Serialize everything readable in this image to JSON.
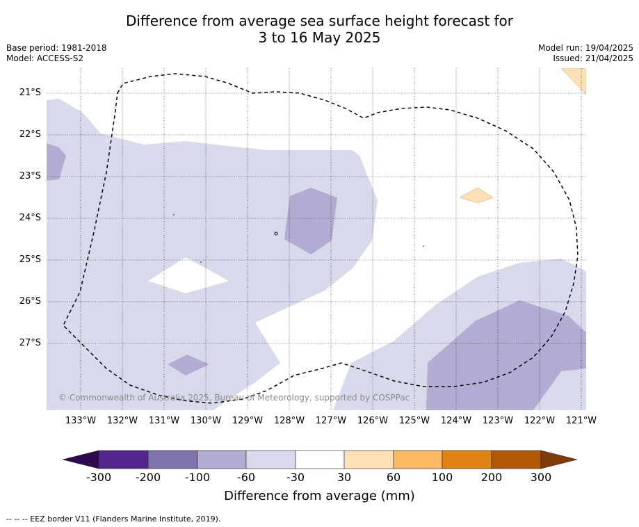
{
  "header": {
    "title_line1": "Difference from average sea surface height forecast for",
    "title_line2": "3 to 16 May 2025",
    "base_period": "Base period: 1981-2018",
    "model": "Model: ACCESS-S2",
    "model_run": "Model run: 19/04/2025",
    "issued": "Issued: 21/04/2025"
  },
  "map": {
    "lat_labels": [
      "21°S",
      "22°S",
      "23°S",
      "24°S",
      "25°S",
      "26°S",
      "27°S"
    ],
    "lon_labels": [
      "133°W",
      "132°W",
      "131°W",
      "130°W",
      "129°W",
      "128°W",
      "127°W",
      "126°W",
      "125°W",
      "124°W",
      "123°W",
      "122°W",
      "121°W"
    ],
    "copyright": "© Commonwealth of Australia 2025, Bureau of Meteorology, supported by COSPPac"
  },
  "colorbar": {
    "tick_labels": [
      "-300",
      "-200",
      "-100",
      "-60",
      "-30",
      "30",
      "60",
      "100",
      "200",
      "300"
    ],
    "label": "Difference from average (mm)",
    "colors": [
      "#2d0a4e",
      "#54278f",
      "#8073ac",
      "#b2abd2",
      "#d8daeb",
      "#ffffff",
      "#fee0b6",
      "#fdb863",
      "#e08214",
      "#b35806",
      "#7f3b08"
    ]
  },
  "footer": {
    "legend": "--  --  -- EEZ border V11 (Flanders Marine Institute, 2019)."
  }
}
